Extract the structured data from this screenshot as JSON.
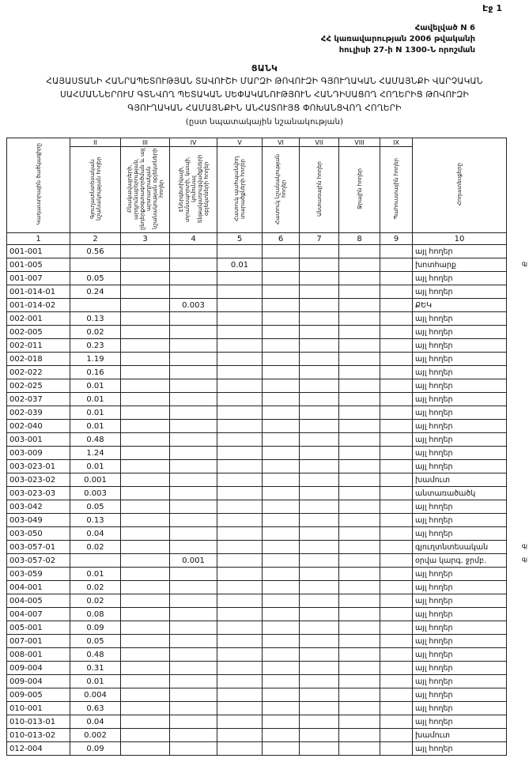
{
  "header": {
    "page": "Էջ 1",
    "appendix": [
      "Հավելված N 6",
      "ՀՀ կառավարության 2006 թվականի",
      "հուլիսի 27-ի N 1300-Ն որոշման"
    ],
    "title": "ՑԱՆԿ",
    "subject": [
      "ՀԱՅԱՍՏԱՆԻ ՀԱՆՐԱՊԵՏՈՒԹՅԱՆ ՏԱՎՈՒՇԻ ՄԱՐԶԻ ԹՈՎՈՒԶԻ ԳՅՈՒՂԱԿԱՆ ՀԱՄԱՅՆՔԻ ՎԱՐՉԱԿԱՆ",
      "ՍԱՀՄԱՆՆԵՐՈՒՄ ԳՏՆՎՈՂ ՊԵՏԱԿԱՆ ՍԵՓԱԿԱՆՈՒԹՅՈՒՆ ՀԱՆԴԻՍԱՑՈՂ ՀՈՂԵՐԻՑ ԹՈՎՈՒԶԻ",
      "ԳՅՈՒՂԱԿԱՆ ՀԱՄԱՅՆՔԻՆ ԱՆՀԱՏՈՒՅՑ ՓՈԽԱՆՑՎՈՂ ՀՈՂԵՐԻ"
    ],
    "subtitle": "(ըստ նպատակային նշանակության)"
  },
  "table": {
    "columns": [
      {
        "numeral": null,
        "title": "Կադաստրային ծածկագիրը",
        "index": 1
      },
      {
        "numeral": "II",
        "title": "Գյուղատնտեսական նշանակության հողեր",
        "index": 2
      },
      {
        "numeral": "III",
        "title": "Բնակավայրերի, արդյունաբերության, ընդերքօգտագործման և այլ արտադրական նշանակության օբյեկտների հողեր",
        "index": 3
      },
      {
        "numeral": "IV",
        "title": "Էներգետիկայի, տրանսպորտի, կապի, կոմունալ ենթակառուցվածքների օբյեկտների հողեր",
        "index": 4
      },
      {
        "numeral": "V",
        "title": "Հատուկ պահպանվող տարածքների հողեր",
        "index": 5
      },
      {
        "numeral": "VI",
        "title": "Հատուկ նշանակության հողեր",
        "index": 6
      },
      {
        "numeral": "VII",
        "title": "Անտառային հողեր",
        "index": 7
      },
      {
        "numeral": "VIII",
        "title": "Ջրային հողեր",
        "index": 8
      },
      {
        "numeral": "IX",
        "title": "Պահուստային հողեր",
        "index": 9
      },
      {
        "numeral": null,
        "title": "Հողատեսքերը",
        "index": 10
      }
    ],
    "rows": [
      {
        "code": "001-001",
        "column": 2,
        "value": 0.56,
        "land": "այլ հողեր"
      },
      {
        "code": "001-005",
        "column": 5,
        "value": 0.01,
        "land": "խոտհարք",
        "note": "գյ"
      },
      {
        "code": "001-007",
        "column": 2,
        "value": 0.05,
        "land": "այլ հողեր"
      },
      {
        "code": "001-014-01",
        "column": 2,
        "value": 0.24,
        "land": "այլ հողեր"
      },
      {
        "code": "001-014-02",
        "column": 4,
        "value": 0.003,
        "land": "ՔԵԿ"
      },
      {
        "code": "002-001",
        "column": 2,
        "value": 0.13,
        "land": "այլ հողեր"
      },
      {
        "code": "002-005",
        "column": 2,
        "value": 0.02,
        "land": "այլ հողեր"
      },
      {
        "code": "002-011",
        "column": 2,
        "value": 0.23,
        "land": "այլ հողեր"
      },
      {
        "code": "002-018",
        "column": 2,
        "value": 1.19,
        "land": "այլ հողեր"
      },
      {
        "code": "002-022",
        "column": 2,
        "value": 0.16,
        "land": "այլ հողեր"
      },
      {
        "code": "002-025",
        "column": 2,
        "value": 0.01,
        "land": "այլ հողեր"
      },
      {
        "code": "002-037",
        "column": 2,
        "value": 0.01,
        "land": "այլ հողեր"
      },
      {
        "code": "002-039",
        "column": 2,
        "value": 0.01,
        "land": "այլ հողեր"
      },
      {
        "code": "002-040",
        "column": 2,
        "value": 0.01,
        "land": "այլ հողեր"
      },
      {
        "code": "003-001",
        "column": 2,
        "value": 0.48,
        "land": "այլ հողեր"
      },
      {
        "code": "003-009",
        "column": 2,
        "value": 1.24,
        "land": "այլ հողեր"
      },
      {
        "code": "003-023-01",
        "column": 2,
        "value": 0.01,
        "land": "այլ հողեր"
      },
      {
        "code": "003-023-02",
        "column": 2,
        "value": 0.001,
        "land": "խամուտ"
      },
      {
        "code": "003-023-03",
        "column": 2,
        "value": 0.003,
        "land": "անտառածածկ"
      },
      {
        "code": "003-042",
        "column": 2,
        "value": 0.05,
        "land": "այլ հողեր"
      },
      {
        "code": "003-049",
        "column": 2,
        "value": 0.13,
        "land": "այլ հողեր"
      },
      {
        "code": "003-050",
        "column": 2,
        "value": 0.04,
        "land": "այլ հողեր"
      },
      {
        "code": "003-057-01",
        "column": 2,
        "value": 0.02,
        "land": "գյուղտնտեսական",
        "note": "գյ"
      },
      {
        "code": "003-057-02",
        "column": 4,
        "value": 0.001,
        "land": "օրվա կարգ. ջրմբ.",
        "note": "գյ"
      },
      {
        "code": "003-059",
        "column": 2,
        "value": 0.01,
        "land": "այլ հողեր"
      },
      {
        "code": "004-001",
        "column": 2,
        "value": 0.02,
        "land": "այլ հողեր"
      },
      {
        "code": "004-005",
        "column": 2,
        "value": 0.02,
        "land": "այլ հողեր"
      },
      {
        "code": "004-007",
        "column": 2,
        "value": 0.08,
        "land": "այլ հողեր"
      },
      {
        "code": "005-001",
        "column": 2,
        "value": 0.09,
        "land": "այլ հողեր"
      },
      {
        "code": "007-001",
        "column": 2,
        "value": 0.05,
        "land": "այլ հողեր"
      },
      {
        "code": "008-001",
        "column": 2,
        "value": 0.48,
        "land": "այլ հողեր"
      },
      {
        "code": "009-004",
        "column": 2,
        "value": 0.31,
        "land": "այլ հողեր"
      },
      {
        "code": "009-004",
        "column": 2,
        "value": 0.01,
        "land": "այլ հողեր"
      },
      {
        "code": "009-005",
        "column": 2,
        "value": 0.004,
        "land": "այլ հողեր"
      },
      {
        "code": "010-001",
        "column": 2,
        "value": 0.63,
        "land": "այլ հողեր"
      },
      {
        "code": "010-013-01",
        "column": 2,
        "value": 0.04,
        "land": "այլ հողեր"
      },
      {
        "code": "010-013-02",
        "column": 2,
        "value": 0.002,
        "land": "խամուտ"
      },
      {
        "code": "012-004",
        "column": 2,
        "value": 0.09,
        "land": "այլ հողեր"
      }
    ]
  }
}
